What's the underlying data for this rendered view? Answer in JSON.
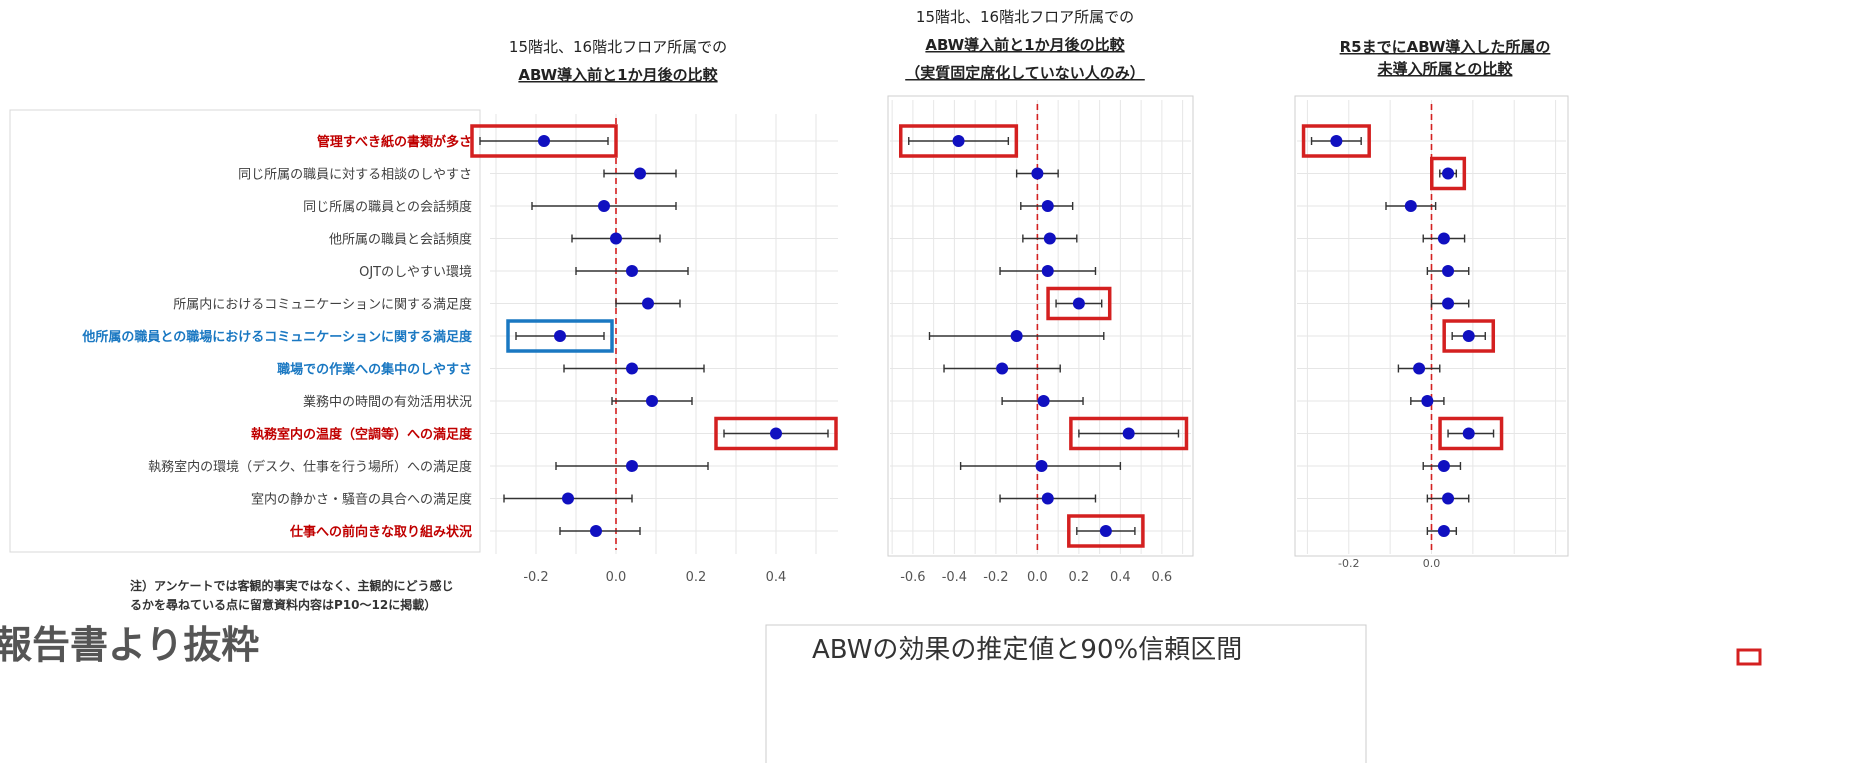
{
  "labels": {
    "items": [
      "管理すべき紙の書類が多さ",
      "同じ所属の職員に対する相談のしやすさ",
      "同じ所属の職員との会話頻度",
      "他所属の職員と会話頻度",
      "OJTのしやすい環境",
      "所属内におけるコミュニケーションに関する満足度",
      "他所属の職員との職場におけるコミュニケーションに関する満足度",
      "職場での作業への集中のしやすさ",
      "業務中の時間の有効活用状況",
      "執務室内の温度（空調等）への満足度",
      "執務室内の環境（デスク、仕事を行う場所）への満足度",
      "室内の静かさ・騒音の具合への満足度",
      "仕事への前向きな取り組み状況"
    ],
    "colors": [
      "#c00000",
      "#404040",
      "#404040",
      "#404040",
      "#404040",
      "#404040",
      "#1a78c2",
      "#1a78c2",
      "#404040",
      "#c00000",
      "#404040",
      "#404040",
      "#c00000"
    ]
  },
  "note": {
    "line1": "注）アンケートでは客観的事実ではなく、主観的にどう感じ",
    "line2": "るかを尋ねている点に留意資料内容はP10～12に掲載）"
  },
  "footer": {
    "left_title": "報告書より抜粋",
    "bottom_caption": "ABWの効果の推定値と90%信頼区間"
  },
  "colors": {
    "point": "#1010c0",
    "red": "#d42020",
    "blue": "#1a78c2",
    "grid": "#e6e6e6"
  },
  "chart_data": [
    {
      "type": "scatter",
      "title": [
        "15階北、16階北フロア所属での",
        "ABW導入前と1か月後の比較"
      ],
      "xlim": [
        -0.32,
        0.56
      ],
      "xticks": [
        -0.2,
        0.0,
        0.2,
        0.4
      ],
      "xtick_labels": [
        "-0.2",
        "0.0",
        "0.2",
        "0.4"
      ],
      "points": [
        {
          "est": -0.18,
          "lo": -0.34,
          "hi": -0.02
        },
        {
          "est": 0.06,
          "lo": -0.03,
          "hi": 0.15
        },
        {
          "est": -0.03,
          "lo": -0.21,
          "hi": 0.15
        },
        {
          "est": 0.0,
          "lo": -0.11,
          "hi": 0.11
        },
        {
          "est": 0.04,
          "lo": -0.1,
          "hi": 0.18
        },
        {
          "est": 0.08,
          "lo": 0.0,
          "hi": 0.16
        },
        {
          "est": -0.14,
          "lo": -0.25,
          "hi": -0.03
        },
        {
          "est": 0.04,
          "lo": -0.13,
          "hi": 0.22
        },
        {
          "est": 0.09,
          "lo": -0.01,
          "hi": 0.19
        },
        {
          "est": 0.4,
          "lo": 0.27,
          "hi": 0.53
        },
        {
          "est": 0.04,
          "lo": -0.15,
          "hi": 0.23
        },
        {
          "est": -0.12,
          "lo": -0.28,
          "hi": 0.04
        },
        {
          "est": -0.05,
          "lo": -0.14,
          "hi": 0.06
        }
      ],
      "highlight": [
        {
          "row": 0,
          "color": "red"
        },
        {
          "row": 6,
          "color": "blue"
        },
        {
          "row": 9,
          "color": "red"
        }
      ]
    },
    {
      "type": "scatter",
      "title": [
        "15階北、16階北フロア所属での",
        "ABW導入前と1か月後の比較",
        "（実質固定席化していない人のみ）"
      ],
      "xlim": [
        -0.72,
        0.75
      ],
      "xticks": [
        -0.6,
        -0.4,
        -0.2,
        0.0,
        0.2,
        0.4,
        0.6
      ],
      "xtick_labels": [
        "-0.6",
        "-0.4",
        "-0.2",
        "0.0",
        "0.2",
        "0.4",
        "0.6"
      ],
      "points": [
        {
          "est": -0.38,
          "lo": -0.62,
          "hi": -0.14
        },
        {
          "est": 0.0,
          "lo": -0.1,
          "hi": 0.1
        },
        {
          "est": 0.05,
          "lo": -0.08,
          "hi": 0.17
        },
        {
          "est": 0.06,
          "lo": -0.07,
          "hi": 0.19
        },
        {
          "est": 0.05,
          "lo": -0.18,
          "hi": 0.28
        },
        {
          "est": 0.2,
          "lo": 0.09,
          "hi": 0.31
        },
        {
          "est": -0.1,
          "lo": -0.52,
          "hi": 0.32
        },
        {
          "est": -0.17,
          "lo": -0.45,
          "hi": 0.11
        },
        {
          "est": 0.03,
          "lo": -0.17,
          "hi": 0.22
        },
        {
          "est": 0.44,
          "lo": 0.2,
          "hi": 0.68
        },
        {
          "est": 0.02,
          "lo": -0.37,
          "hi": 0.4
        },
        {
          "est": 0.05,
          "lo": -0.18,
          "hi": 0.28
        },
        {
          "est": 0.33,
          "lo": 0.19,
          "hi": 0.47
        }
      ],
      "highlight": [
        {
          "row": 0,
          "color": "red"
        },
        {
          "row": 5,
          "color": "red"
        },
        {
          "row": 9,
          "color": "red"
        },
        {
          "row": 12,
          "color": "red"
        }
      ]
    },
    {
      "type": "scatter",
      "title": [
        "R5までにABW導入した所属の",
        "未導入所属との比較"
      ],
      "xlim": [
        -0.33,
        0.33
      ],
      "xticks": [
        -0.2,
        0.0
      ],
      "xtick_labels": [
        "-0.2",
        "0.0"
      ],
      "points": [
        {
          "est": -0.23,
          "lo": -0.29,
          "hi": -0.17
        },
        {
          "est": 0.04,
          "lo": 0.02,
          "hi": 0.06
        },
        {
          "est": -0.05,
          "lo": -0.11,
          "hi": 0.01
        },
        {
          "est": 0.03,
          "lo": -0.02,
          "hi": 0.08
        },
        {
          "est": 0.04,
          "lo": -0.01,
          "hi": 0.09
        },
        {
          "est": 0.04,
          "lo": 0.0,
          "hi": 0.09
        },
        {
          "est": 0.09,
          "lo": 0.05,
          "hi": 0.13
        },
        {
          "est": -0.03,
          "lo": -0.08,
          "hi": 0.02
        },
        {
          "est": -0.01,
          "lo": -0.05,
          "hi": 0.03
        },
        {
          "est": 0.09,
          "lo": 0.04,
          "hi": 0.15
        },
        {
          "est": 0.03,
          "lo": -0.02,
          "hi": 0.07
        },
        {
          "est": 0.04,
          "lo": -0.01,
          "hi": 0.09
        },
        {
          "est": 0.03,
          "lo": -0.01,
          "hi": 0.06
        }
      ],
      "highlight": [
        {
          "row": 0,
          "color": "red"
        },
        {
          "row": 1,
          "color": "red"
        },
        {
          "row": 6,
          "color": "red"
        },
        {
          "row": 9,
          "color": "red"
        }
      ]
    }
  ]
}
